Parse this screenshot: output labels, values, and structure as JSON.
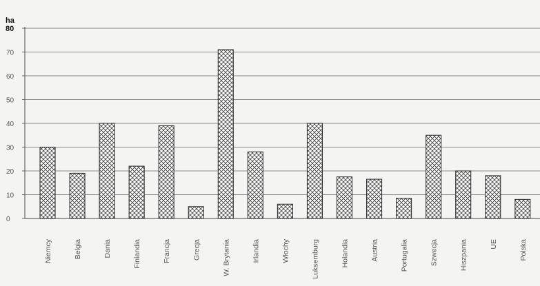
{
  "chart_data": {
    "type": "bar",
    "title": "",
    "xlabel": "",
    "ylabel": "ha",
    "ylim": [
      0,
      80
    ],
    "yticks": [
      0,
      10,
      20,
      30,
      40,
      50,
      60,
      70,
      80
    ],
    "ytick_labels": [
      "0",
      "10",
      "20",
      "30",
      "40",
      "50",
      "60",
      "70",
      "80"
    ],
    "grid": true,
    "bar_pattern": "crosshatch",
    "colors": {
      "bar_fill": "#ffffff",
      "bar_stroke": "#333333",
      "hatch": "#444444",
      "grid": "#888888",
      "axis": "#666666"
    },
    "categories": [
      "Niemcy",
      "Belgia",
      "Dania",
      "Finlandia",
      "Francja",
      "Grecja",
      "W. Brytania",
      "Irlandia",
      "Włochy",
      "Luksemburg",
      "Holandia",
      "Austria",
      "Portugalia",
      "Szwecja",
      "Hiszpania",
      "UE",
      "Polska"
    ],
    "values": [
      30,
      19,
      40,
      22,
      39,
      5,
      71,
      28,
      6,
      40,
      17.5,
      16.5,
      8.5,
      35,
      20,
      18,
      8
    ]
  }
}
